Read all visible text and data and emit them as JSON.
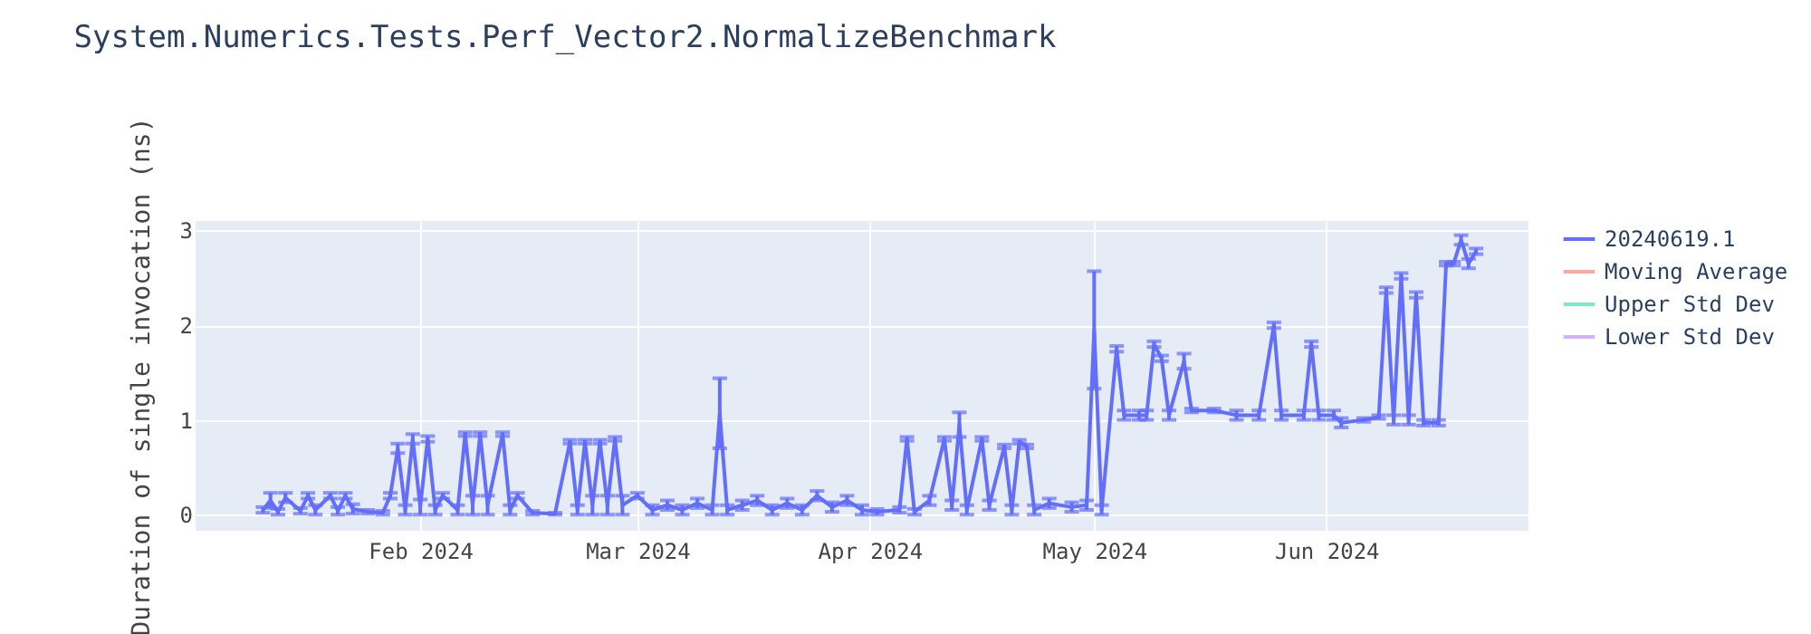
{
  "chart_data": {
    "type": "line",
    "title": "System.Numerics.Tests.Perf_Vector2.NormalizeBenchmark",
    "ylabel": "Duration of single invocation (ns)",
    "x": [
      "2024-01-11",
      "2024-01-12",
      "2024-01-13",
      "2024-01-14",
      "2024-01-16",
      "2024-01-17",
      "2024-01-18",
      "2024-01-20",
      "2024-01-21",
      "2024-01-22",
      "2024-01-23",
      "2024-01-25",
      "2024-01-27",
      "2024-01-28",
      "2024-01-29",
      "2024-01-30",
      "2024-01-31",
      "2024-02-01",
      "2024-02-02",
      "2024-02-03",
      "2024-02-04",
      "2024-02-06",
      "2024-02-07",
      "2024-02-08",
      "2024-02-09",
      "2024-02-10",
      "2024-02-12",
      "2024-02-13",
      "2024-02-14",
      "2024-02-16",
      "2024-02-19",
      "2024-02-21",
      "2024-02-22",
      "2024-02-23",
      "2024-02-24",
      "2024-02-25",
      "2024-02-26",
      "2024-02-27",
      "2024-02-28",
      "2024-03-01",
      "2024-03-03",
      "2024-03-05",
      "2024-03-07",
      "2024-03-09",
      "2024-03-11",
      "2024-03-12",
      "2024-03-13",
      "2024-03-15",
      "2024-03-17",
      "2024-03-19",
      "2024-03-21",
      "2024-03-23",
      "2024-03-25",
      "2024-03-27",
      "2024-03-29",
      "2024-03-31",
      "2024-04-02",
      "2024-04-05",
      "2024-04-06",
      "2024-04-07",
      "2024-04-09",
      "2024-04-11",
      "2024-04-12",
      "2024-04-13",
      "2024-04-14",
      "2024-04-16",
      "2024-04-17",
      "2024-04-19",
      "2024-04-20",
      "2024-04-21",
      "2024-04-22",
      "2024-04-23",
      "2024-04-25",
      "2024-04-28",
      "2024-04-30",
      "2024-05-01",
      "2024-05-02",
      "2024-05-04",
      "2024-05-05",
      "2024-05-07",
      "2024-05-08",
      "2024-05-09",
      "2024-05-10",
      "2024-05-11",
      "2024-05-13",
      "2024-05-14",
      "2024-05-17",
      "2024-05-20",
      "2024-05-23",
      "2024-05-25",
      "2024-05-26",
      "2024-05-29",
      "2024-05-30",
      "2024-05-31",
      "2024-06-02",
      "2024-06-03",
      "2024-06-06",
      "2024-06-08",
      "2024-06-09",
      "2024-06-10",
      "2024-06-11",
      "2024-06-12",
      "2024-06-13",
      "2024-06-14",
      "2024-06-16",
      "2024-06-17",
      "2024-06-18",
      "2024-06-19",
      "2024-06-20",
      "2024-06-21"
    ],
    "series": [
      {
        "name": "20240619.1",
        "color": "#636efa",
        "values": [
          0.05,
          0.15,
          0.03,
          0.18,
          0.04,
          0.2,
          0.05,
          0.2,
          0.04,
          0.2,
          0.06,
          0.03,
          0.02,
          0.2,
          0.7,
          0.05,
          0.8,
          0.08,
          0.8,
          0.05,
          0.2,
          0.05,
          0.85,
          0.1,
          0.85,
          0.1,
          0.85,
          0.05,
          0.2,
          0.02,
          0.01,
          0.77,
          0.05,
          0.77,
          0.1,
          0.77,
          0.1,
          0.8,
          0.1,
          0.2,
          0.05,
          0.1,
          0.05,
          0.12,
          0.05,
          1.07,
          0.05,
          0.1,
          0.15,
          0.05,
          0.12,
          0.05,
          0.2,
          0.08,
          0.15,
          0.05,
          0.03,
          0.05,
          0.8,
          0.03,
          0.15,
          0.8,
          0.1,
          0.95,
          0.05,
          0.8,
          0.1,
          0.72,
          0.05,
          0.77,
          0.72,
          0.05,
          0.12,
          0.08,
          0.1,
          1.95,
          0.05,
          1.75,
          1.05,
          1.05,
          1.05,
          1.8,
          1.65,
          1.05,
          1.62,
          1.1,
          1.1,
          1.05,
          1.05,
          2.0,
          1.05,
          1.05,
          1.8,
          1.05,
          1.05,
          0.97,
          1.0,
          1.03,
          2.37,
          1.0,
          2.52,
          1.0,
          2.32,
          0.97,
          0.97,
          2.65,
          2.65,
          2.9,
          2.65,
          2.78
        ],
        "errors": [
          0.03,
          0.08,
          0.03,
          0.05,
          0.03,
          0.03,
          0.05,
          0.03,
          0.04,
          0.03,
          0.05,
          0.02,
          0.02,
          0.03,
          0.05,
          0.05,
          0.05,
          0.08,
          0.03,
          0.05,
          0.03,
          0.05,
          0.02,
          0.1,
          0.02,
          0.1,
          0.02,
          0.05,
          0.03,
          0.02,
          0.01,
          0.02,
          0.05,
          0.02,
          0.1,
          0.02,
          0.1,
          0.02,
          0.1,
          0.03,
          0.05,
          0.05,
          0.05,
          0.05,
          0.05,
          0.37,
          0.05,
          0.05,
          0.05,
          0.05,
          0.05,
          0.05,
          0.05,
          0.05,
          0.05,
          0.05,
          0.03,
          0.03,
          0.02,
          0.03,
          0.05,
          0.02,
          0.05,
          0.13,
          0.05,
          0.02,
          0.05,
          0.02,
          0.05,
          0.02,
          0.02,
          0.05,
          0.05,
          0.05,
          0.05,
          0.62,
          0.05,
          0.03,
          0.05,
          0.05,
          0.05,
          0.03,
          0.03,
          0.05,
          0.08,
          0.02,
          0.02,
          0.05,
          0.05,
          0.03,
          0.05,
          0.05,
          0.03,
          0.05,
          0.05,
          0.05,
          0.02,
          0.02,
          0.03,
          0.05,
          0.03,
          0.05,
          0.03,
          0.03,
          0.03,
          0.02,
          0.02,
          0.05,
          0.05,
          0.03
        ]
      },
      {
        "name": "Moving Average",
        "color": "#f7aa9d",
        "values": [
          null,
          null,
          null,
          null,
          null,
          null,
          null,
          null,
          null,
          null,
          null,
          null,
          null,
          null,
          null,
          null,
          null,
          null,
          null,
          null,
          null,
          null,
          null,
          null,
          null,
          null,
          null,
          null,
          null,
          null,
          null,
          null,
          null,
          null,
          null,
          null,
          null,
          null,
          null,
          null,
          null,
          null,
          null,
          null,
          null,
          null,
          null,
          null,
          null,
          null,
          null,
          null,
          null,
          null,
          null,
          null,
          null,
          null,
          null,
          null,
          null,
          null,
          null,
          null,
          null,
          null,
          null,
          null,
          null,
          null,
          null,
          null,
          null,
          null,
          null,
          null,
          null,
          null,
          null,
          null,
          null,
          null,
          null,
          null,
          null,
          null,
          null,
          null,
          null,
          null,
          null,
          null,
          null,
          null,
          null,
          null,
          null,
          null,
          null,
          null,
          null,
          null,
          null,
          null,
          null,
          null,
          null,
          null,
          null,
          null
        ]
      },
      {
        "name": "Upper Std Dev",
        "color": "#80e5ca",
        "values": [
          null,
          null,
          null,
          null,
          null,
          null,
          null,
          null,
          null,
          null,
          null,
          null,
          null,
          null,
          null,
          null,
          null,
          null,
          null,
          null,
          null,
          null,
          null,
          null,
          null,
          null,
          null,
          null,
          null,
          null,
          null,
          null,
          null,
          null,
          null,
          null,
          null,
          null,
          null,
          null,
          null,
          null,
          null,
          null,
          null,
          null,
          null,
          null,
          null,
          null,
          null,
          null,
          null,
          null,
          null,
          null,
          null,
          null,
          null,
          null,
          null,
          null,
          null,
          null,
          null,
          null,
          null,
          null,
          null,
          null,
          null,
          null,
          null,
          null,
          null,
          null,
          null,
          null,
          null,
          null,
          null,
          null,
          null,
          null,
          null,
          null,
          null,
          null,
          null,
          null,
          null,
          null,
          null,
          null,
          null,
          null,
          null,
          null,
          null,
          null,
          null,
          null,
          null,
          null,
          null,
          null,
          null,
          null,
          null,
          null
        ]
      },
      {
        "name": "Lower Std Dev",
        "color": "#d5b1fc",
        "values": [
          null,
          null,
          null,
          null,
          null,
          null,
          null,
          null,
          null,
          null,
          null,
          null,
          null,
          null,
          null,
          null,
          null,
          null,
          null,
          null,
          null,
          null,
          null,
          null,
          null,
          null,
          null,
          null,
          null,
          null,
          null,
          null,
          null,
          null,
          null,
          null,
          null,
          null,
          null,
          null,
          null,
          null,
          null,
          null,
          null,
          null,
          null,
          null,
          null,
          null,
          null,
          null,
          null,
          null,
          null,
          null,
          null,
          null,
          null,
          null,
          null,
          null,
          null,
          null,
          null,
          null,
          null,
          null,
          null,
          null,
          null,
          null,
          null,
          null,
          null,
          null,
          null,
          null,
          null,
          null,
          null,
          null,
          null,
          null,
          null,
          null,
          null,
          null,
          null,
          null,
          null,
          null,
          null,
          null,
          null,
          null,
          null,
          null,
          null,
          null,
          null,
          null,
          null,
          null,
          null,
          null,
          null,
          null,
          null,
          null
        ]
      }
    ],
    "xlim": [
      "2024-01-02",
      "2024-06-28"
    ],
    "xticks": [
      {
        "value": "2024-02-01",
        "label": "Feb 2024"
      },
      {
        "value": "2024-03-01",
        "label": "Mar 2024"
      },
      {
        "value": "2024-04-01",
        "label": "Apr 2024"
      },
      {
        "value": "2024-05-01",
        "label": "May 2024"
      },
      {
        "value": "2024-06-01",
        "label": "Jun 2024"
      }
    ],
    "ylim": [
      -0.17,
      3.1
    ],
    "yticks": [
      0,
      1,
      2,
      3
    ],
    "grid": true,
    "legend": "top right",
    "line_style": "solid",
    "marker": "none"
  }
}
